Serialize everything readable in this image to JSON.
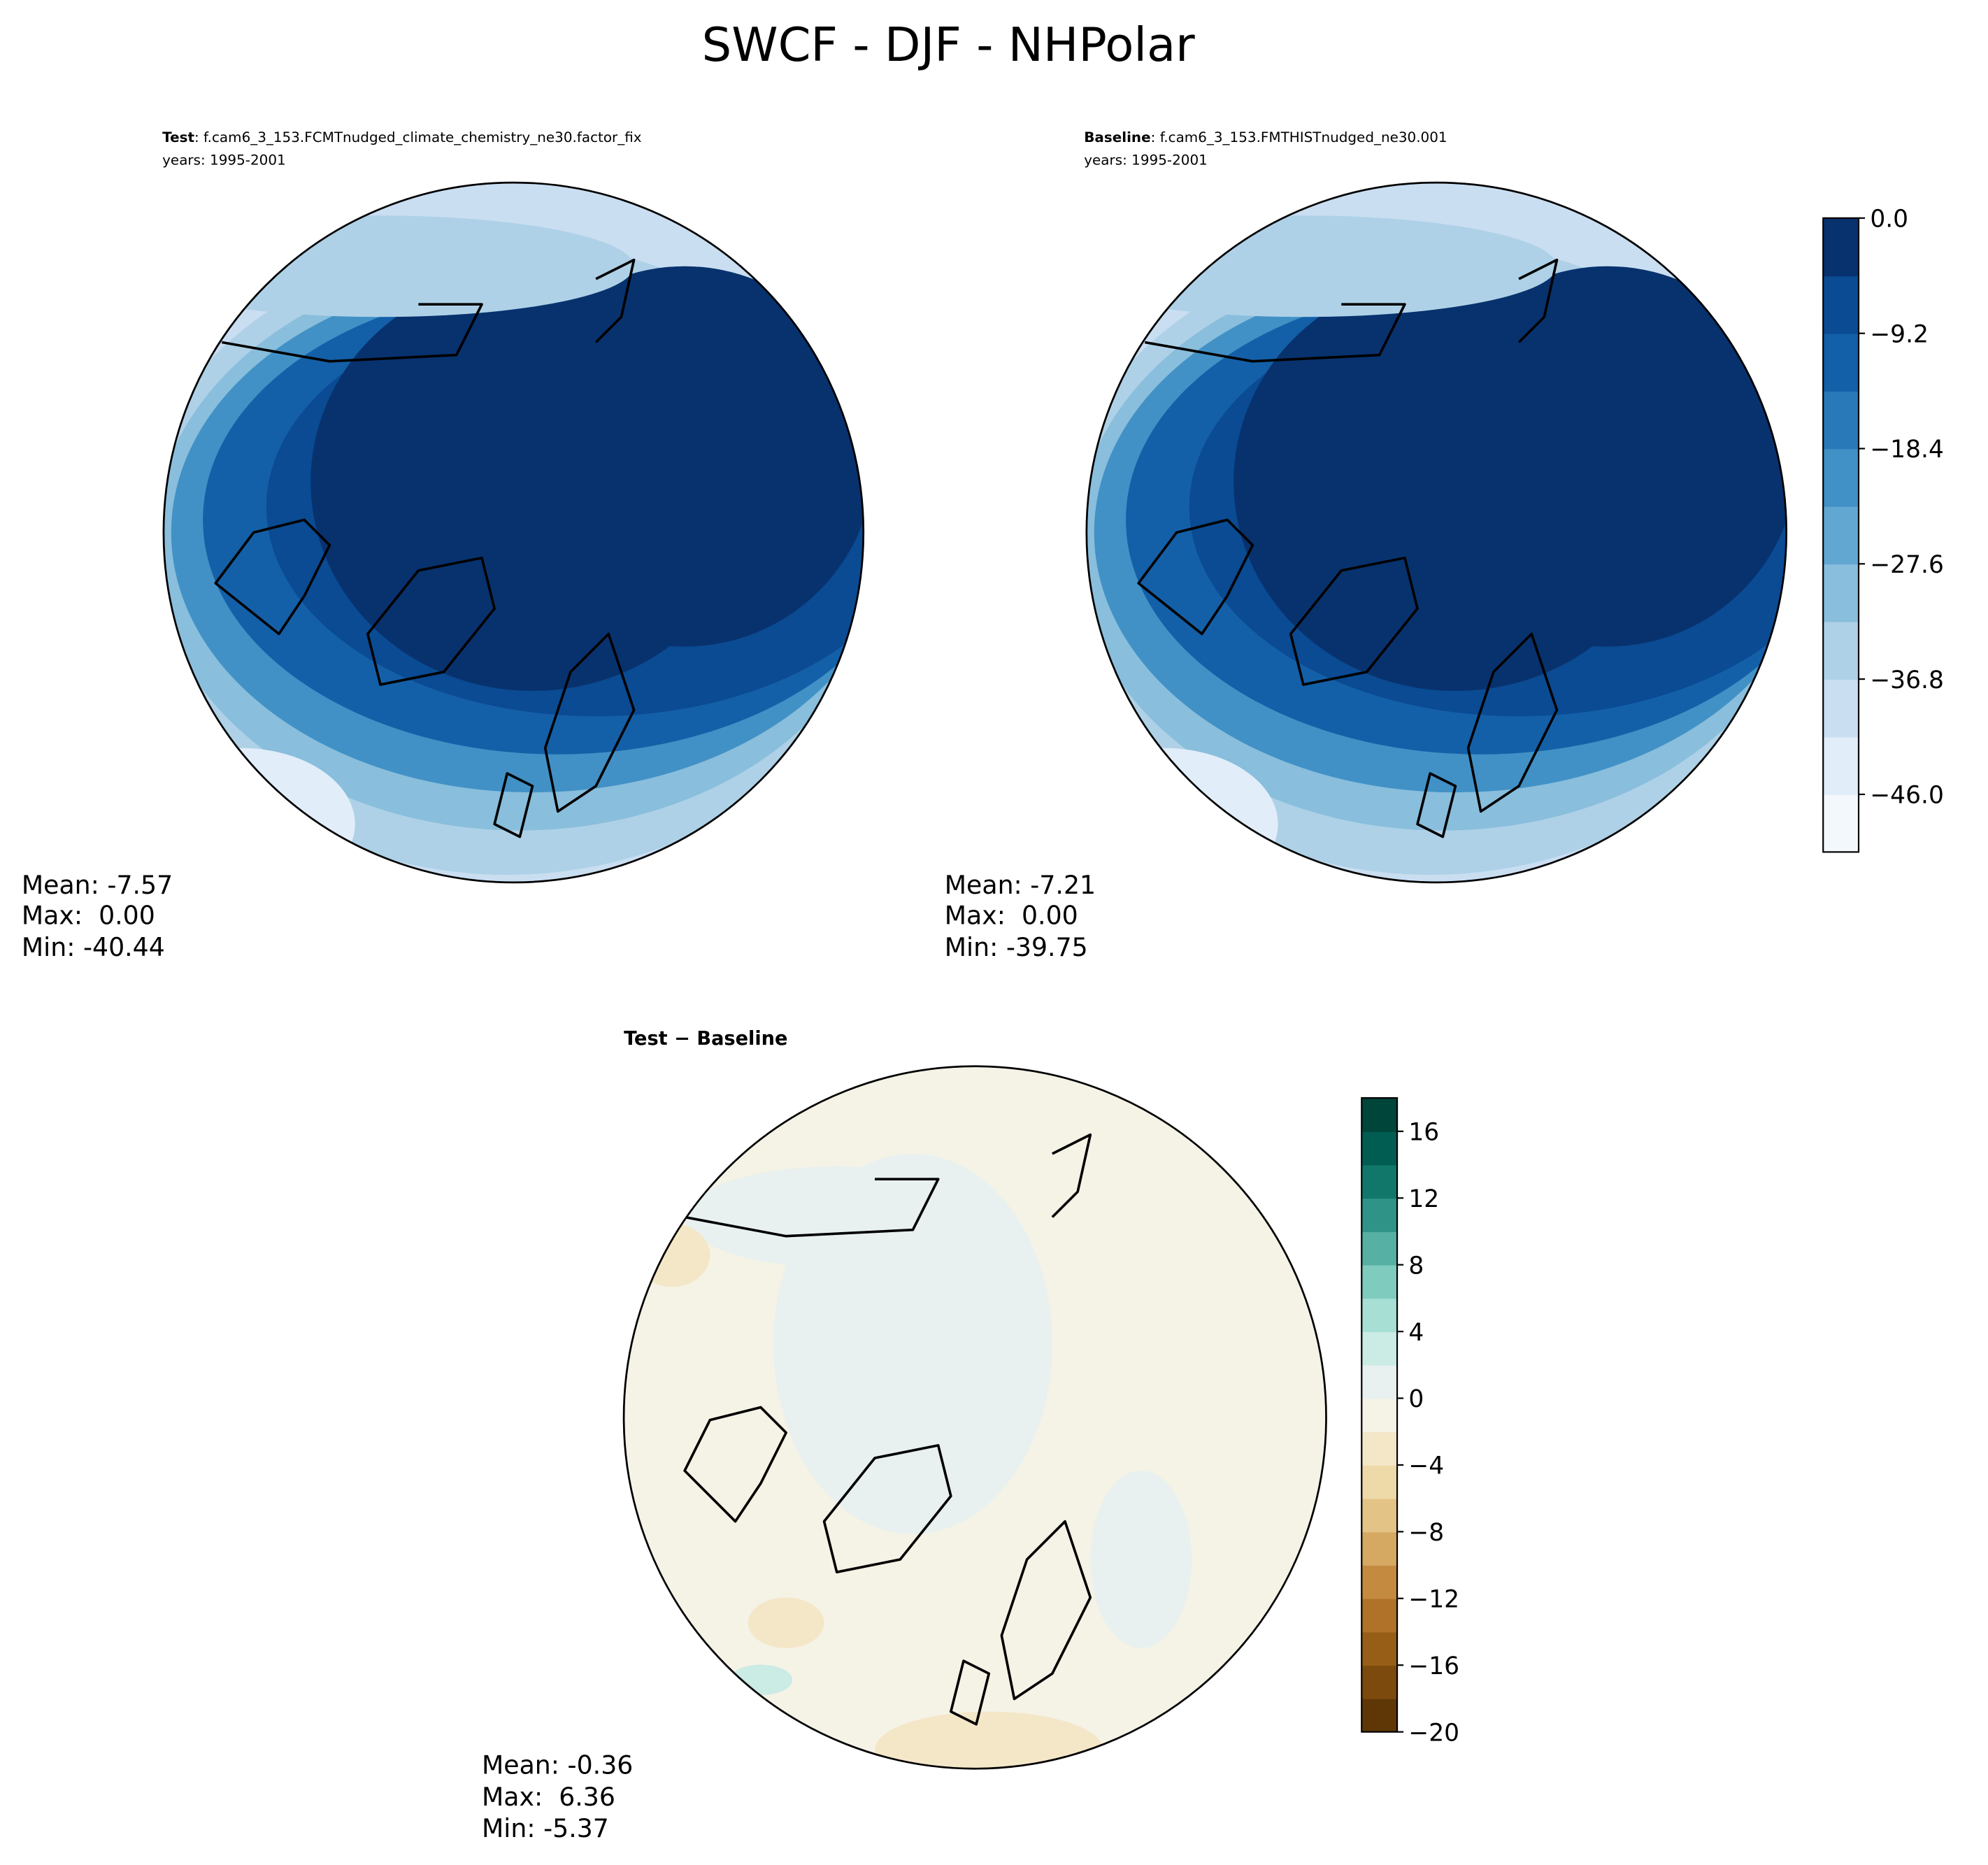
{
  "title": "SWCF - DJF - NHPolar",
  "panels": [
    {
      "label": "Test",
      "case": ": f.cam6_3_153.FCMTnudged_climate_chemistry_ne30.factor_fix",
      "years": "years: 1995-2001",
      "stats": [
        "Mean: -7.57",
        "Max:  0.00",
        "Min: -40.44"
      ]
    },
    {
      "label": "Baseline",
      "case": ": f.cam6_3_153.FMTHISTnudged_ne30.001",
      "years": "years: 1995-2001",
      "stats": [
        "Mean: -7.21",
        "Max:  0.00",
        "Min: -39.75"
      ]
    },
    {
      "label": "Test − Baseline",
      "stats": [
        "Mean: -0.36",
        "Max:  6.36",
        "Min: -5.37"
      ]
    }
  ],
  "colorbars": [
    {
      "lim": [
        -50.6,
        0
      ],
      "ticks": [
        {
          "value": 0,
          "label": "0.0"
        },
        {
          "value": -9.2,
          "label": "−9.2"
        },
        {
          "value": -18.4,
          "label": "−18.4"
        },
        {
          "value": -27.6,
          "label": "−27.6"
        },
        {
          "value": -36.8,
          "label": "−36.8"
        },
        {
          "value": -46.0,
          "label": "−46.0"
        }
      ],
      "colors": [
        "#f3f8fd",
        "#e1edf8",
        "#cadef1",
        "#aed1e7",
        "#89bedc",
        "#62a7d2",
        "#4191c6",
        "#2979b9",
        "#1460a8",
        "#0a4b93",
        "#08326e"
      ]
    },
    {
      "lim": [
        -20,
        18
      ],
      "ticks": [
        16,
        12,
        8,
        4,
        0,
        {
          "value": -4,
          "label": "−4"
        },
        {
          "value": -8,
          "label": "−8"
        },
        {
          "value": -12,
          "label": "−12"
        },
        {
          "value": -16,
          "label": "−16"
        },
        {
          "value": -20,
          "label": "−20"
        }
      ],
      "colors": [
        "#5f3707",
        "#7b4a0c",
        "#965e17",
        "#b07128",
        "#c48a3f",
        "#d5a962",
        "#e3c486",
        "#eedaa8",
        "#f4e7c8",
        "#f5f2e6",
        "#e8f1ef",
        "#cbebe5",
        "#a7dfd5",
        "#7fcbbd",
        "#56b0a3",
        "#2f9387",
        "#12776b",
        "#015d52",
        "#00453a"
      ]
    }
  ]
}
